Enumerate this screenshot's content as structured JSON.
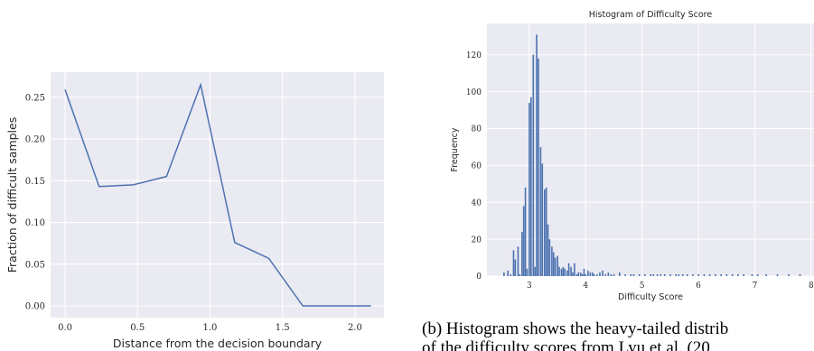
{
  "charts": [
    {
      "id": "left",
      "chart_data": {
        "type": "line",
        "title": "",
        "xlabel": "Distance from the decision boundary",
        "ylabel": "Fraction of difficult samples",
        "xlim": [
          -0.1,
          2.2
        ],
        "ylim": [
          -0.014,
          0.28
        ],
        "xticks": [
          0.0,
          0.5,
          1.0,
          1.5,
          2.0
        ],
        "xtick_labels": [
          "0.0",
          "0.5",
          "1.0",
          "1.5",
          "2.0"
        ],
        "yticks": [
          0.0,
          0.05,
          0.1,
          0.15,
          0.2,
          0.25
        ],
        "ytick_labels": [
          "0.00",
          "0.05",
          "0.10",
          "0.15",
          "0.20",
          "0.25"
        ],
        "grid": true,
        "series": [
          {
            "color": "#4c72b0",
            "x": [
              0.0,
              0.235,
              0.47,
              0.7,
              0.935,
              1.17,
              1.405,
              1.64,
              1.875,
              2.11
            ],
            "y": [
              0.259,
              0.143,
              0.145,
              0.155,
              0.265,
              0.076,
              0.057,
              0.0,
              0.0,
              0.0
            ]
          }
        ]
      }
    },
    {
      "id": "right",
      "chart_data": {
        "type": "bar",
        "title": "Histogram of Difficulty Score",
        "xlabel": "Difficulty Score",
        "ylabel": "Frequency",
        "xlim": [
          2.25,
          8.05
        ],
        "ylim": [
          0,
          137
        ],
        "xticks": [
          3,
          4,
          5,
          6,
          7,
          8
        ],
        "xtick_labels": [
          "3",
          "4",
          "5",
          "6",
          "7",
          "8"
        ],
        "yticks": [
          0,
          20,
          40,
          60,
          80,
          100,
          120
        ],
        "ytick_labels": [
          "0",
          "20",
          "40",
          "60",
          "80",
          "100",
          "120"
        ],
        "grid": true,
        "bar_color": "#4c72b0",
        "bins": {
          "x": [
            2.55,
            2.62,
            2.67,
            2.72,
            2.75,
            2.8,
            2.83,
            2.87,
            2.9,
            2.93,
            2.96,
            3.0,
            3.03,
            3.07,
            3.1,
            3.13,
            3.16,
            3.2,
            3.23,
            3.27,
            3.3,
            3.33,
            3.36,
            3.4,
            3.43,
            3.46,
            3.5,
            3.53,
            3.57,
            3.6,
            3.63,
            3.67,
            3.7,
            3.74,
            3.77,
            3.8,
            3.84,
            3.87,
            3.91,
            3.94,
            3.97,
            4.0,
            4.04,
            4.08,
            4.12,
            4.15,
            4.2,
            4.25,
            4.3,
            4.35,
            4.4,
            4.45,
            4.5,
            4.6,
            4.7,
            4.8,
            4.85,
            4.95,
            5.05,
            5.15,
            5.2,
            5.27,
            5.33,
            5.4,
            5.5,
            5.6,
            5.65,
            5.72,
            5.8,
            5.9,
            6.0,
            6.1,
            6.2,
            6.3,
            6.4,
            6.5,
            6.6,
            6.7,
            6.8,
            6.95,
            7.05,
            7.2,
            7.4,
            7.6,
            7.8
          ],
          "y": [
            2,
            3,
            1,
            14,
            9,
            16,
            1,
            24,
            38,
            48,
            4,
            94,
            97,
            120,
            5,
            131,
            118,
            70,
            61,
            47,
            48,
            28,
            20,
            16,
            13,
            10,
            11,
            5,
            4,
            5,
            4,
            3,
            7,
            5,
            2,
            7,
            1,
            2,
            2,
            1,
            4,
            1,
            3,
            2,
            2,
            1,
            1,
            2,
            3,
            1,
            2,
            1,
            1,
            2,
            1,
            1,
            1,
            1,
            1,
            1,
            1,
            1,
            1,
            1,
            1,
            1,
            1,
            1,
            1,
            1,
            1,
            1,
            1,
            1,
            1,
            1,
            1,
            1,
            1,
            1,
            1,
            1,
            1,
            1,
            1
          ]
        }
      }
    }
  ],
  "caption": {
    "line1": "(b) Histogram shows the heavy-tailed distrib",
    "line2": "of the difficulty scores from Lyu et al. (20"
  }
}
